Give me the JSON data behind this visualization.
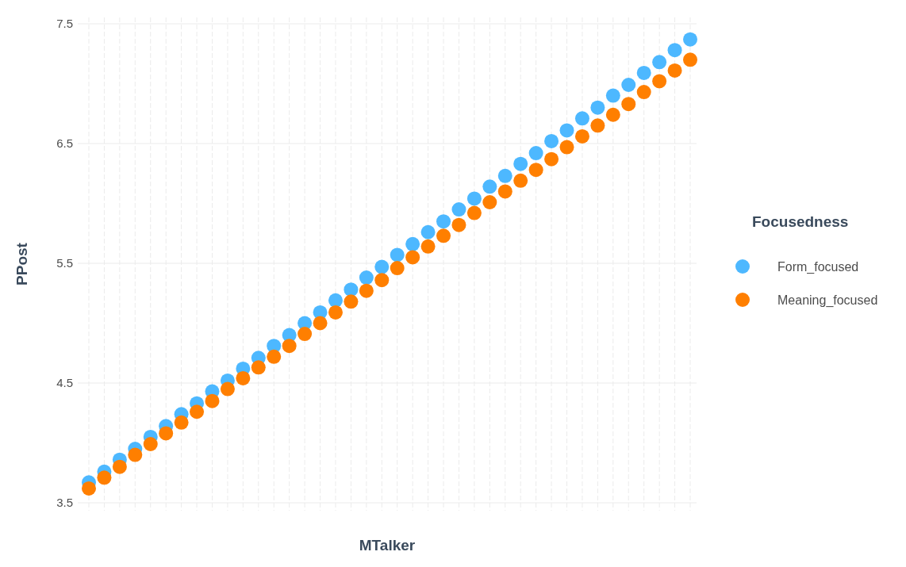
{
  "chart_data": {
    "type": "scatter",
    "xlabel": "MTalker",
    "ylabel": "PPost",
    "legend_title": "Focusedness",
    "legend": "right",
    "grid": true,
    "marker": "circle",
    "tick_labels": "y",
    "categories": [
      null,
      null,
      null,
      null,
      null,
      null,
      null,
      null,
      null,
      null,
      null,
      null,
      null,
      null,
      null,
      null,
      null,
      null,
      null,
      null,
      null,
      null,
      null,
      null,
      null,
      null,
      null,
      null,
      null,
      null,
      null,
      null,
      null,
      null,
      null,
      null,
      null,
      null,
      null,
      null
    ],
    "ylim": [
      3.5,
      7.5
    ],
    "yticks": [
      3.5,
      4.5,
      5.5,
      6.5,
      7.5
    ],
    "series": [
      {
        "name": "Form_focused",
        "color": "#4db8ff",
        "values": [
          3.67,
          3.76,
          3.86,
          3.95,
          4.05,
          4.14,
          4.24,
          4.33,
          4.43,
          4.52,
          4.62,
          4.71,
          4.81,
          4.9,
          5.0,
          5.09,
          5.19,
          5.28,
          5.38,
          5.47,
          5.57,
          5.66,
          5.76,
          5.85,
          5.95,
          6.04,
          6.14,
          6.23,
          6.33,
          6.42,
          6.52,
          6.61,
          6.71,
          6.8,
          6.9,
          6.99,
          7.09,
          7.18,
          7.28,
          7.37
        ]
      },
      {
        "name": "Meaning_focused",
        "color": "#ff7f00",
        "values": [
          3.62,
          3.71,
          3.8,
          3.9,
          3.99,
          4.08,
          4.17,
          4.26,
          4.35,
          4.45,
          4.54,
          4.63,
          4.72,
          4.81,
          4.91,
          5.0,
          5.09,
          5.18,
          5.27,
          5.36,
          5.46,
          5.55,
          5.64,
          5.73,
          5.82,
          5.92,
          6.01,
          6.1,
          6.19,
          6.28,
          6.37,
          6.47,
          6.56,
          6.65,
          6.74,
          6.83,
          6.93,
          7.02,
          7.11,
          7.2
        ]
      }
    ]
  }
}
